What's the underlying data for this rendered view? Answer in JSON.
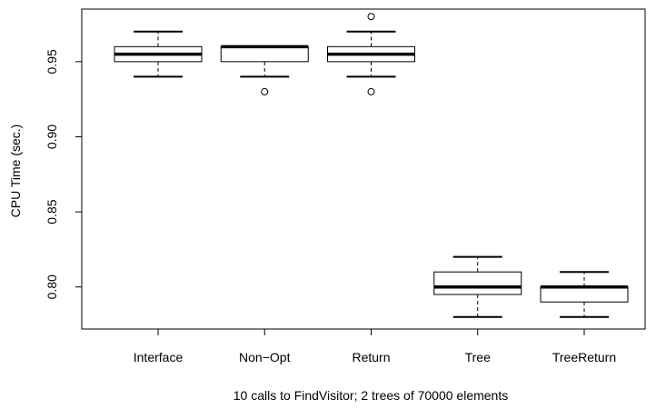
{
  "chart_data": {
    "type": "boxplot",
    "title": "",
    "xlabel": "10 calls to FindVisitor; 2 trees of 70000 elements",
    "ylabel": "CPU Time (sec.)",
    "ylim": [
      0.772,
      0.985
    ],
    "yticks": [
      0.8,
      0.85,
      0.9,
      0.95
    ],
    "ytick_labels": [
      "0.80",
      "0.85",
      "0.90",
      "0.95"
    ],
    "grid": false,
    "categories": [
      "Interface",
      "Non−Opt",
      "Return",
      "Tree",
      "TreeReturn"
    ],
    "boxes": [
      {
        "category": "Interface",
        "whisker_low": 0.94,
        "q1": 0.95,
        "median": 0.955,
        "q3": 0.96,
        "whisker_high": 0.97,
        "outliers": []
      },
      {
        "category": "Non−Opt",
        "whisker_low": 0.94,
        "q1": 0.95,
        "median": 0.96,
        "q3": 0.96,
        "whisker_high": 0.96,
        "outliers": [
          0.93
        ]
      },
      {
        "category": "Return",
        "whisker_low": 0.94,
        "q1": 0.95,
        "median": 0.955,
        "q3": 0.96,
        "whisker_high": 0.97,
        "outliers": [
          0.93,
          0.98
        ]
      },
      {
        "category": "Tree",
        "whisker_low": 0.78,
        "q1": 0.795,
        "median": 0.8,
        "q3": 0.81,
        "whisker_high": 0.82,
        "outliers": []
      },
      {
        "category": "TreeReturn",
        "whisker_low": 0.78,
        "q1": 0.79,
        "median": 0.8,
        "q3": 0.8,
        "whisker_high": 0.81,
        "outliers": []
      }
    ]
  }
}
